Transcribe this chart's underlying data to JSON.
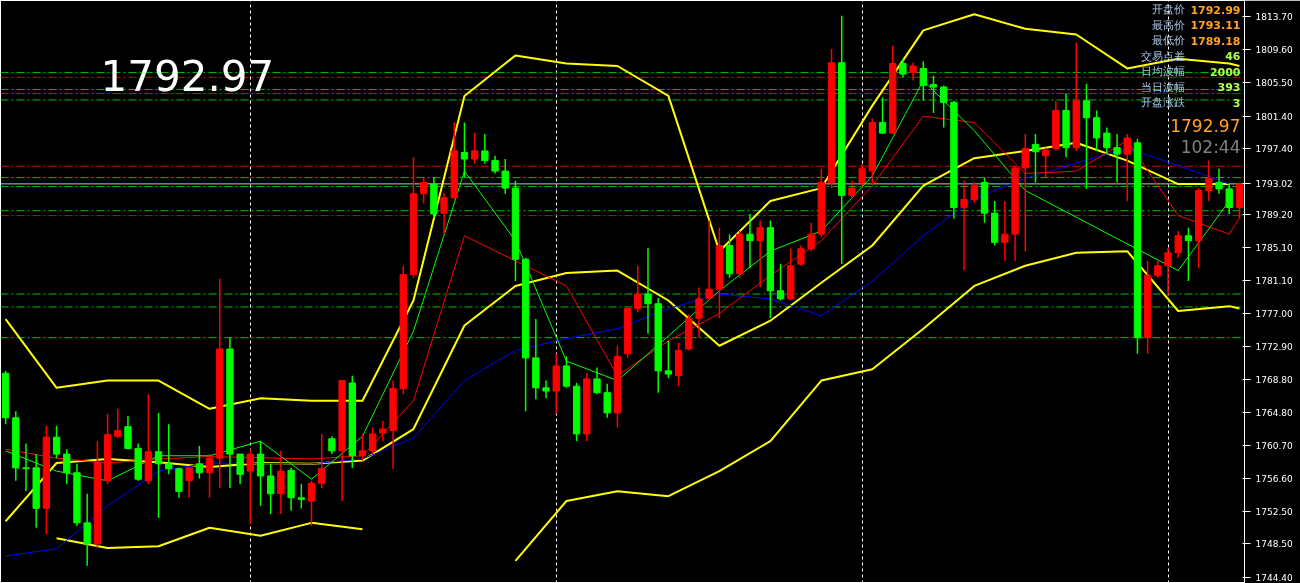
{
  "chart_data": {
    "type": "candlestick",
    "categories": [
      null,
      null,
      null,
      null,
      null,
      null,
      null,
      null,
      null,
      null,
      null,
      null,
      null,
      null,
      null,
      null,
      null,
      null,
      null,
      null,
      null,
      null,
      null,
      null,
      null,
      null,
      null,
      null,
      null,
      null,
      null,
      null,
      null,
      null,
      null,
      null,
      null,
      null,
      null,
      null,
      null,
      null,
      null,
      null,
      null,
      null,
      null,
      null,
      null,
      null,
      null,
      null,
      null,
      null,
      null,
      null,
      null,
      null,
      null,
      null,
      null,
      null,
      null,
      null,
      null,
      null,
      null,
      null,
      null,
      null,
      null,
      null,
      null,
      null,
      null,
      null,
      null,
      null,
      null,
      null,
      null,
      null,
      null,
      null,
      null,
      null,
      null,
      null,
      null,
      null,
      null,
      null,
      null,
      null,
      null,
      null,
      null,
      null,
      null,
      null,
      null,
      null,
      null,
      null,
      null,
      null,
      null,
      null,
      null,
      null,
      null,
      null,
      null,
      null,
      null,
      null,
      null,
      null,
      null,
      null,
      null,
      null
    ],
    "ohlc": [
      [
        1769.6,
        1769.9,
        1763.3,
        1764.1
      ],
      [
        1764.1,
        1764.9,
        1756.3,
        1757.9
      ],
      [
        1757.9,
        1760.9,
        1755.0,
        1757.8
      ],
      [
        1757.9,
        1759.6,
        1750.5,
        1752.9
      ],
      [
        1752.9,
        1763.1,
        1749.7,
        1761.7
      ],
      [
        1761.7,
        1763.1,
        1759.1,
        1759.6
      ],
      [
        1759.6,
        1760.2,
        1755.9,
        1757.3
      ],
      [
        1757.3,
        1758.4,
        1750.7,
        1751.1
      ],
      [
        1751.1,
        1754.7,
        1745.8,
        1748.5
      ],
      [
        1748.5,
        1761.2,
        1748.0,
        1758.6
      ],
      [
        1756.3,
        1764.6,
        1755.9,
        1762.0
      ],
      [
        1761.8,
        1765.2,
        1761.6,
        1762.5
      ],
      [
        1763.0,
        1764.3,
        1760.2,
        1760.3
      ],
      [
        1760.3,
        1760.9,
        1756.3,
        1756.5
      ],
      [
        1756.3,
        1767.0,
        1755.9,
        1759.9
      ],
      [
        1759.9,
        1764.7,
        1751.7,
        1758.4
      ],
      [
        1758.4,
        1763.3,
        1757.1,
        1757.8
      ],
      [
        1757.8,
        1757.9,
        1754.2,
        1755.0
      ],
      [
        1756.3,
        1757.9,
        1754.2,
        1757.9
      ],
      [
        1758.4,
        1760.6,
        1756.6,
        1757.3
      ],
      [
        1757.3,
        1759.6,
        1754.2,
        1759.1
      ],
      [
        1759.1,
        1781.3,
        1755.4,
        1772.6
      ],
      [
        1772.6,
        1774.0,
        1755.4,
        1759.6
      ],
      [
        1759.6,
        1759.6,
        1755.9,
        1757.1
      ],
      [
        1757.5,
        1760.2,
        1751.0,
        1759.6
      ],
      [
        1759.6,
        1761.2,
        1753.2,
        1756.9
      ],
      [
        1756.9,
        1758.4,
        1752.2,
        1754.7
      ],
      [
        1754.7,
        1760.0,
        1752.2,
        1757.5
      ],
      [
        1757.6,
        1757.9,
        1752.6,
        1754.2
      ],
      [
        1754.2,
        1755.9,
        1752.9,
        1754.0
      ],
      [
        1753.8,
        1756.3,
        1750.7,
        1756.0
      ],
      [
        1756.0,
        1762.1,
        1755.4,
        1757.8
      ],
      [
        1761.5,
        1761.8,
        1759.6,
        1760.0
      ],
      [
        1760.0,
        1768.7,
        1753.8,
        1768.7
      ],
      [
        1768.4,
        1769.3,
        1757.9,
        1759.4
      ],
      [
        1759.4,
        1762.1,
        1758.8,
        1760.0
      ],
      [
        1760.0,
        1762.9,
        1759.6,
        1762.1
      ],
      [
        1762.2,
        1763.7,
        1761.2,
        1762.7
      ],
      [
        1762.5,
        1768.7,
        1757.8,
        1767.7
      ],
      [
        1767.7,
        1782.9,
        1767.0,
        1781.8
      ],
      [
        1781.8,
        1796.3,
        1781.4,
        1791.8
      ],
      [
        1791.8,
        1793.8,
        1790.6,
        1793.2
      ],
      [
        1793.0,
        1793.8,
        1788.8,
        1789.3
      ],
      [
        1789.4,
        1791.9,
        1786.9,
        1791.3
      ],
      [
        1791.3,
        1800.6,
        1791.2,
        1797.1
      ],
      [
        1796.9,
        1800.6,
        1793.8,
        1796.1
      ],
      [
        1796.1,
        1799.3,
        1795.5,
        1797.1
      ],
      [
        1797.1,
        1799.2,
        1795.5,
        1795.9
      ],
      [
        1795.9,
        1796.5,
        1794.3,
        1794.6
      ],
      [
        1794.6,
        1796.1,
        1791.8,
        1792.5
      ],
      [
        1792.5,
        1793.4,
        1781.0,
        1783.7
      ],
      [
        1783.7,
        1783.9,
        1764.9,
        1771.5
      ],
      [
        1771.5,
        1776.3,
        1766.4,
        1767.8
      ],
      [
        1767.8,
        1768.7,
        1766.5,
        1767.4
      ],
      [
        1767.4,
        1772.0,
        1764.6,
        1770.5
      ],
      [
        1770.5,
        1771.7,
        1767.8,
        1768.0
      ],
      [
        1768.0,
        1768.4,
        1761.2,
        1762.1
      ],
      [
        1762.1,
        1769.6,
        1761.2,
        1768.9
      ],
      [
        1768.9,
        1770.3,
        1767.0,
        1767.2
      ],
      [
        1767.2,
        1768.3,
        1764.1,
        1764.7
      ],
      [
        1764.7,
        1773.0,
        1762.9,
        1771.7
      ],
      [
        1772.0,
        1777.7,
        1771.5,
        1777.6
      ],
      [
        1777.6,
        1782.9,
        1777.1,
        1779.4
      ],
      [
        1779.4,
        1785.1,
        1774.5,
        1778.2
      ],
      [
        1778.2,
        1778.9,
        1767.2,
        1769.9
      ],
      [
        1769.9,
        1773.6,
        1769.0,
        1769.5
      ],
      [
        1769.3,
        1773.4,
        1768.0,
        1772.4
      ],
      [
        1772.6,
        1776.9,
        1772.4,
        1776.4
      ],
      [
        1776.4,
        1780.2,
        1774.0,
        1778.8
      ],
      [
        1778.9,
        1788.5,
        1778.6,
        1780.0
      ],
      [
        1780.0,
        1787.6,
        1776.4,
        1785.4
      ],
      [
        1785.4,
        1786.8,
        1781.4,
        1781.9
      ],
      [
        1781.9,
        1787.2,
        1781.4,
        1786.8
      ],
      [
        1786.8,
        1789.3,
        1782.6,
        1786.0
      ],
      [
        1786.0,
        1788.5,
        1780.2,
        1787.6
      ],
      [
        1787.6,
        1788.5,
        1776.4,
        1779.8
      ],
      [
        1779.8,
        1783.1,
        1778.6,
        1778.8
      ],
      [
        1778.8,
        1785.0,
        1778.6,
        1782.9
      ],
      [
        1783.1,
        1785.4,
        1782.9,
        1785.0
      ],
      [
        1785.0,
        1788.2,
        1784.7,
        1786.8
      ],
      [
        1786.8,
        1794.9,
        1786.4,
        1793.2
      ],
      [
        1793.2,
        1809.7,
        1792.5,
        1808.0
      ],
      [
        1808.0,
        1813.8,
        1783.1,
        1791.6
      ],
      [
        1791.6,
        1793.4,
        1791.3,
        1792.5
      ],
      [
        1793.2,
        1795.5,
        1792.5,
        1794.9
      ],
      [
        1794.6,
        1801.1,
        1793.0,
        1800.6
      ],
      [
        1800.6,
        1803.7,
        1799.2,
        1799.3
      ],
      [
        1799.3,
        1810.1,
        1799.2,
        1807.9
      ],
      [
        1807.9,
        1808.5,
        1806.2,
        1806.6
      ],
      [
        1806.8,
        1808.0,
        1805.8,
        1807.6
      ],
      [
        1807.3,
        1808.2,
        1803.3,
        1805.2
      ],
      [
        1805.3,
        1806.4,
        1801.8,
        1805.0
      ],
      [
        1805.0,
        1805.2,
        1800.0,
        1803.1
      ],
      [
        1803.1,
        1803.3,
        1788.7,
        1790.1
      ],
      [
        1790.1,
        1793.4,
        1782.3,
        1791.1
      ],
      [
        1791.1,
        1793.2,
        1790.7,
        1792.8
      ],
      [
        1793.2,
        1793.8,
        1788.2,
        1789.4
      ],
      [
        1789.4,
        1790.9,
        1785.4,
        1785.8
      ],
      [
        1785.8,
        1790.9,
        1783.5,
        1786.8
      ],
      [
        1786.8,
        1795.3,
        1783.5,
        1795.0
      ],
      [
        1795.0,
        1799.2,
        1784.7,
        1797.4
      ],
      [
        1797.9,
        1799.2,
        1793.2,
        1797.0
      ],
      [
        1796.5,
        1797.5,
        1793.8,
        1797.2
      ],
      [
        1797.4,
        1803.3,
        1797.1,
        1802.1
      ],
      [
        1802.1,
        1804.2,
        1796.3,
        1797.5
      ],
      [
        1797.5,
        1810.5,
        1797.1,
        1803.3
      ],
      [
        1803.3,
        1805.4,
        1792.4,
        1801.2
      ],
      [
        1801.2,
        1802.1,
        1797.1,
        1798.7
      ],
      [
        1799.3,
        1800.0,
        1796.7,
        1797.5
      ],
      [
        1797.5,
        1799.2,
        1793.2,
        1796.7
      ],
      [
        1796.7,
        1799.2,
        1790.9,
        1798.7
      ],
      [
        1798.1,
        1798.6,
        1772.0,
        1774.0
      ],
      [
        1774.0,
        1783.5,
        1772.0,
        1781.7
      ],
      [
        1781.7,
        1783.5,
        1781.4,
        1782.9
      ],
      [
        1782.9,
        1785.1,
        1779.2,
        1784.5
      ],
      [
        1784.5,
        1787.2,
        1783.9,
        1786.6
      ],
      [
        1786.6,
        1787.6,
        1781.0,
        1786.0
      ],
      [
        1786.0,
        1792.5,
        1782.6,
        1792.2
      ],
      [
        1792.2,
        1795.9,
        1790.9,
        1793.7
      ],
      [
        1793.2,
        1794.9,
        1791.8,
        1792.4
      ],
      [
        1792.4,
        1793.0,
        1789.3,
        1790.1
      ],
      [
        1790.1,
        1793.2,
        1788.8,
        1793.0
      ]
    ],
    "series": [
      {
        "type": "line",
        "color": "#ffff00",
        "values": [
          1776.3,
          null,
          null,
          null,
          null,
          1767.8,
          null,
          null,
          null,
          null,
          1768.7,
          null,
          null,
          null,
          null,
          1768.7,
          null,
          null,
          null,
          null,
          1765.2,
          null,
          null,
          null,
          null,
          1766.5,
          null,
          null,
          null,
          null,
          1766.2,
          null,
          null,
          null,
          null,
          1766.2,
          null,
          null,
          null,
          null,
          1778.6,
          null,
          null,
          null,
          null,
          1803.9,
          null,
          null,
          null,
          null,
          1808.9,
          null,
          null,
          null,
          null,
          1807.9,
          null,
          null,
          null,
          null,
          1807.6,
          null,
          null,
          null,
          null,
          1803.9,
          null,
          null,
          null,
          null,
          1784.7,
          null,
          null,
          null,
          null,
          1790.9,
          null,
          null,
          null,
          null,
          1792.5,
          null,
          null,
          null,
          null,
          1802.7,
          null,
          null,
          null,
          null,
          1812.0,
          null,
          null,
          null,
          null,
          1814.0,
          null,
          null,
          null,
          null,
          1812.2,
          null,
          null,
          null,
          null,
          1811.5,
          null,
          null,
          null,
          null,
          1807.3,
          null,
          null,
          null,
          null,
          1808.5,
          null,
          null,
          null,
          null,
          1807.9,
          1807.6
        ]
      },
      {
        "type": "line",
        "color": "#ffff00",
        "values": [
          1751.3,
          null,
          null,
          null,
          null,
          1758.5,
          null,
          null,
          null,
          null,
          1759.0,
          null,
          null,
          null,
          null,
          1758.6,
          null,
          null,
          null,
          null,
          1758.0,
          null,
          null,
          null,
          null,
          1758.5,
          null,
          null,
          null,
          null,
          1758.4,
          null,
          null,
          null,
          null,
          1758.8,
          null,
          null,
          null,
          null,
          1762.7,
          null,
          null,
          null,
          null,
          1775.5,
          null,
          null,
          null,
          null,
          1780.4,
          null,
          null,
          null,
          null,
          1782.0,
          null,
          null,
          null,
          null,
          1782.3,
          null,
          null,
          null,
          null,
          1778.6,
          null,
          null,
          null,
          null,
          1773.0,
          null,
          null,
          null,
          null,
          1776.1,
          null,
          null,
          null,
          null,
          1780.8,
          null,
          null,
          null,
          null,
          1785.4,
          null,
          null,
          null,
          null,
          1792.8,
          null,
          null,
          null,
          null,
          1796.2,
          null,
          null,
          null,
          null,
          1797.1,
          null,
          null,
          null,
          null,
          1798.1,
          null,
          null,
          null,
          null,
          1795.9,
          null,
          null,
          null,
          null,
          1793.0,
          null,
          null,
          null,
          null,
          1793.0,
          null
        ]
      },
      {
        "type": "line",
        "color": "#ffff00",
        "values": [
          null,
          null,
          null,
          null,
          null,
          1749.2,
          null,
          null,
          null,
          null,
          1748.0,
          null,
          null,
          null,
          null,
          1748.2,
          null,
          null,
          null,
          null,
          1750.5,
          null,
          null,
          null,
          null,
          1749.5,
          null,
          null,
          null,
          null,
          1751.1,
          null,
          null,
          null,
          null,
          1750.3,
          null,
          null,
          null,
          null,
          null,
          null,
          null,
          null,
          null,
          null,
          null,
          null,
          null,
          null,
          null,
          null,
          null,
          null,
          null,
          null,
          null,
          null,
          null,
          null,
          null,
          null,
          null,
          null,
          null,
          null,
          null,
          null,
          null,
          null,
          null,
          null,
          null,
          null,
          null,
          null,
          null,
          null,
          null,
          null,
          null,
          null,
          null,
          null,
          null,
          null,
          null,
          null,
          null,
          null,
          null,
          null,
          null,
          null,
          null,
          null,
          null,
          null,
          null,
          null,
          null,
          null,
          null,
          null,
          null,
          null,
          null,
          null,
          null,
          null,
          null,
          null,
          null,
          null,
          null,
          null,
          null,
          null,
          null,
          null,
          null,
          null
        ]
      },
      {
        "type": "line",
        "color": "#ffff00",
        "values": [
          null,
          null,
          null,
          null,
          null,
          null,
          null,
          null,
          null,
          null,
          null,
          null,
          null,
          null,
          null,
          null,
          null,
          null,
          null,
          null,
          null,
          null,
          null,
          null,
          null,
          null,
          null,
          null,
          null,
          null,
          null,
          null,
          null,
          null,
          null,
          null,
          null,
          null,
          null,
          null,
          null,
          null,
          null,
          null,
          null,
          null,
          null,
          null,
          null,
          null,
          1746.4,
          null,
          null,
          null,
          null,
          1753.8,
          null,
          null,
          null,
          null,
          1755.0,
          null,
          null,
          null,
          null,
          1754.4,
          null,
          null,
          null,
          null,
          1757.5,
          null,
          null,
          null,
          null,
          1761.2,
          null,
          null,
          null,
          null,
          1768.7,
          null,
          null,
          null,
          null,
          1770.1,
          null,
          null,
          null,
          null,
          1775.1,
          null,
          null,
          null,
          null,
          1780.4,
          null,
          null,
          null,
          null,
          1782.9,
          null,
          null,
          null,
          null,
          1784.5,
          null,
          null,
          null,
          null,
          1784.7,
          null,
          null,
          null,
          null,
          1777.3,
          null,
          null,
          null,
          null,
          1777.9,
          1777.6
        ]
      },
      {
        "type": "line",
        "color": "#0000ff",
        "values": [
          1747.0,
          null,
          null,
          null,
          null,
          1747.9,
          null,
          null,
          null,
          null,
          1753.2,
          null,
          null,
          null,
          null,
          1757.5,
          null,
          null,
          null,
          null,
          1758.5,
          null,
          null,
          null,
          null,
          null,
          null,
          null,
          null,
          null,
          1758.4,
          null,
          null,
          null,
          null,
          1759.0,
          null,
          null,
          null,
          null,
          1761.6,
          null,
          null,
          null,
          null,
          1768.7,
          null,
          null,
          null,
          null,
          1772.4,
          null,
          null,
          null,
          null,
          1773.9,
          null,
          null,
          null,
          null,
          1775.1,
          null,
          null,
          null,
          null,
          1777.6,
          null,
          null,
          null,
          null,
          1779.4,
          null,
          null,
          null,
          null,
          1778.8,
          null,
          null,
          null,
          null,
          1776.7,
          null,
          null,
          null,
          null,
          1781.0,
          null,
          null,
          null,
          null,
          1786.6,
          null,
          null,
          null,
          null,
          1791.2,
          null,
          null,
          null,
          null,
          1793.7,
          null,
          null,
          null,
          null,
          1795.6,
          null,
          null,
          null,
          null,
          1797.4,
          null,
          null,
          null,
          null,
          1795.3,
          null,
          null,
          null,
          null,
          1793.0,
          null
        ]
      },
      {
        "type": "line",
        "color": "#ff0000",
        "values": [
          1760.2,
          null,
          null,
          null,
          null,
          1759.1,
          null,
          null,
          null,
          null,
          1758.5,
          null,
          null,
          null,
          null,
          1759.0,
          null,
          null,
          null,
          null,
          1759.3,
          null,
          null,
          null,
          null,
          null,
          null,
          null,
          null,
          null,
          1759.0,
          null,
          null,
          null,
          null,
          1759.4,
          null,
          null,
          null,
          null,
          1766.2,
          null,
          null,
          null,
          null,
          1786.6,
          null,
          null,
          null,
          null,
          null,
          null,
          null,
          null,
          null,
          1780.4,
          null,
          null,
          null,
          null,
          1769.3,
          null,
          null,
          null,
          null,
          1773.6,
          null,
          null,
          null,
          null,
          1777.0,
          null,
          null,
          null,
          null,
          1781.7,
          null,
          null,
          null,
          null,
          1786.0,
          null,
          null,
          null,
          null,
          1792.8,
          null,
          null,
          null,
          null,
          1801.4,
          null,
          null,
          null,
          null,
          1800.6,
          null,
          null,
          null,
          null,
          1794.3,
          null,
          null,
          null,
          null,
          1794.6,
          null,
          null,
          null,
          null,
          1798.4,
          null,
          null,
          null,
          null,
          1789.1,
          null,
          null,
          null,
          null,
          1786.8,
          1788.8
        ]
      },
      {
        "type": "line",
        "color": "#00ff00",
        "values": [
          1760.0,
          null,
          null,
          null,
          null,
          1757.5,
          null,
          null,
          null,
          null,
          1756.3,
          null,
          null,
          null,
          null,
          1759.4,
          null,
          null,
          null,
          null,
          1759.4,
          null,
          null,
          null,
          null,
          1761.2,
          null,
          null,
          null,
          null,
          1756.5,
          null,
          null,
          null,
          null,
          1761.8,
          null,
          null,
          null,
          null,
          1774.8,
          null,
          null,
          null,
          null,
          1794.6,
          null,
          null,
          null,
          null,
          1786.0,
          null,
          null,
          null,
          null,
          1771.1,
          null,
          null,
          null,
          null,
          1768.7,
          null,
          null,
          null,
          null,
          1774.2,
          null,
          null,
          null,
          null,
          1779.8,
          null,
          null,
          null,
          null,
          1784.7,
          null,
          null,
          null,
          null,
          1787.2,
          null,
          null,
          null,
          null,
          1794.0,
          null,
          null,
          null,
          null,
          1805.8,
          null,
          null,
          null,
          null,
          1799.6,
          null,
          null,
          null,
          null,
          1792.2,
          null,
          null,
          null,
          null,
          null,
          null,
          null,
          null,
          null,
          null,
          null,
          null,
          null,
          null,
          1782.3,
          null,
          null,
          null,
          null,
          1790.9,
          null
        ]
      }
    ],
    "ylim": [
      1743.6,
      1815.7
    ],
    "yticks": [
      {
        "value": 1813.7,
        "label": "1813.70"
      },
      {
        "value": 1809.6,
        "label": "1809.60"
      },
      {
        "value": 1805.5,
        "label": "1805.50"
      },
      {
        "value": 1801.4,
        "label": "1801.40"
      },
      {
        "value": 1797.4,
        "label": "1797.40"
      },
      {
        "value": 1789.2,
        "label": "1789.20"
      },
      {
        "value": 1785.1,
        "label": "1785.10"
      },
      {
        "value": 1781.1,
        "label": "1781.10"
      },
      {
        "value": 1777.0,
        "label": "1777.00"
      },
      {
        "value": 1772.9,
        "label": "1772.90"
      },
      {
        "value": 1768.8,
        "label": "1768.80"
      },
      {
        "value": 1764.8,
        "label": "1764.80"
      },
      {
        "value": 1760.7,
        "label": "1760.70"
      },
      {
        "value": 1756.6,
        "label": "1756.60"
      },
      {
        "value": 1752.5,
        "label": "1752.50"
      },
      {
        "value": 1748.5,
        "label": "1748.50"
      },
      {
        "value": 1744.4,
        "label": "1744.40"
      }
    ],
    "tick_labels": "y",
    "grid": "x",
    "ref_lines": [
      {
        "axis": "y",
        "value": 1806.8,
        "color": "#00c000",
        "line_style": "dashed"
      },
      {
        "axis": "y",
        "value": 1806.2,
        "color": "#e00000",
        "line_style": "dashed"
      },
      {
        "axis": "y",
        "value": 1804.7,
        "color": "#00c000",
        "line_style": "dashed"
      },
      {
        "axis": "y",
        "value": 1804.2,
        "color": "#e00000",
        "line_style": "dashed"
      },
      {
        "axis": "y",
        "value": 1803.4,
        "color": "#00c000",
        "line_style": "dashed"
      },
      {
        "axis": "y",
        "value": 1795.2,
        "color": "#e00000",
        "line_style": "dashed"
      },
      {
        "axis": "y",
        "value": 1793.8,
        "color": "#00c000",
        "line_style": "dashed"
      },
      {
        "axis": "y",
        "value": 1793.02,
        "label": "1793.02",
        "color": "#c0c0c0",
        "line_style": "solid"
      },
      {
        "axis": "y",
        "value": 1792.7,
        "color": "#00c000",
        "line_style": "dashed"
      },
      {
        "axis": "y",
        "value": 1789.7,
        "color": "#00c000",
        "line_style": "dashed"
      },
      {
        "axis": "y",
        "value": 1789.1,
        "color": "#e00000",
        "line_style": "dashed"
      },
      {
        "axis": "y",
        "value": 1779.4,
        "color": "#00c000",
        "line_style": "dashed"
      },
      {
        "axis": "y",
        "value": 1777.8,
        "color": "#00c000",
        "line_style": "dashed"
      },
      {
        "axis": "y",
        "value": 1774.0,
        "color": "#00c000",
        "line_style": "dashed"
      }
    ],
    "annotations": [
      "1792.97",
      "开盘价 1792.99",
      "最高价 1793.11",
      "最低价 1789.18",
      "交易点差 46",
      "日均波幅 2000",
      "当日波幅 393",
      "开盘涨跌 3",
      "1792.97",
      "102:44"
    ]
  }
}
